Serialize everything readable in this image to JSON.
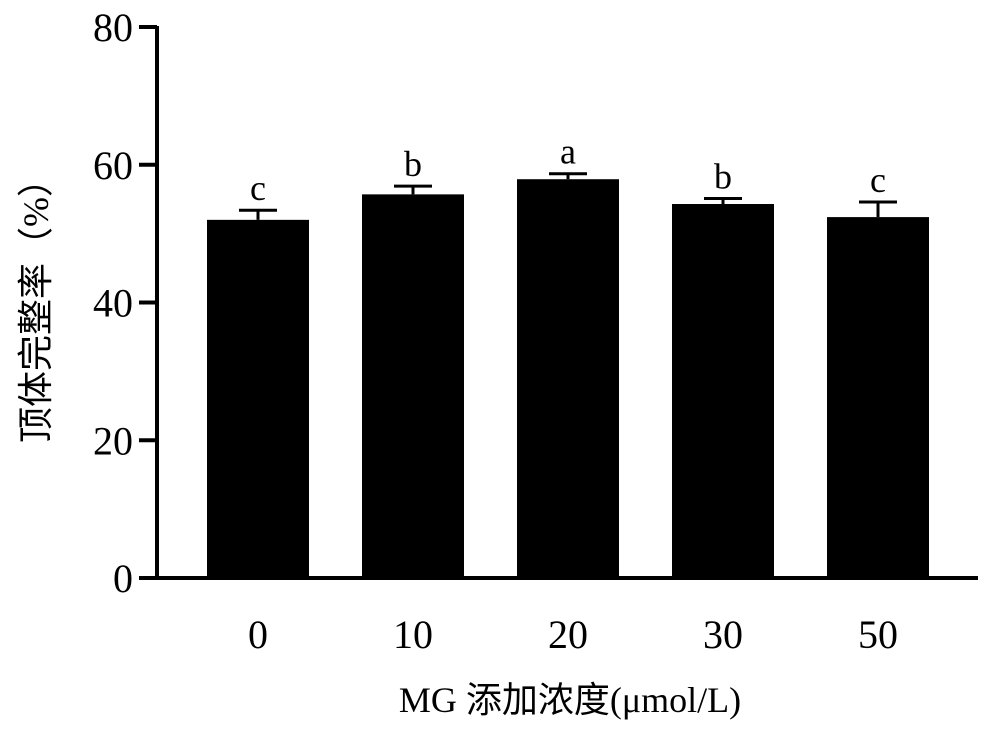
{
  "chart_data": {
    "type": "bar",
    "categories": [
      "0",
      "10",
      "20",
      "30",
      "50"
    ],
    "values": [
      52.0,
      55.7,
      57.9,
      54.3,
      52.4
    ],
    "errors": [
      1.4,
      1.2,
      0.8,
      0.8,
      2.2
    ],
    "significance": [
      "c",
      "b",
      "a",
      "b",
      "c"
    ],
    "title": "",
    "xlabel": "MG 添加浓度(μmol/L)",
    "ylabel": "顶体完整率（%）",
    "ylim": [
      0,
      80
    ],
    "yticks": [
      0,
      20,
      40,
      60,
      80
    ],
    "grid": false,
    "legend": "none",
    "bar_color": "#000000"
  }
}
